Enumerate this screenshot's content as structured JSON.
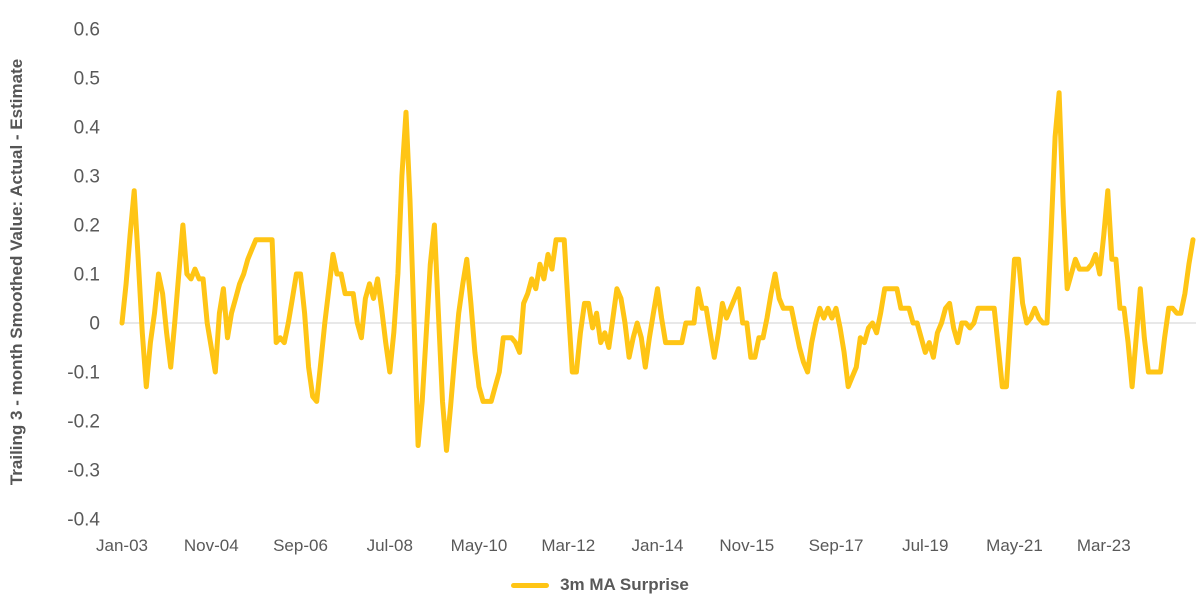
{
  "colors": {
    "line": "#FFC515",
    "zero_line": "#D9D9D9",
    "tick_text": "#595959",
    "axis_title_text": "#555555",
    "background": "#FFFFFF"
  },
  "legend": {
    "label": "3m MA Surprise"
  },
  "chart_data": {
    "type": "line",
    "title": "",
    "xlabel": "",
    "ylabel": "Trailing 3 - month Smoothed Value: Actual  - Estimate",
    "x_start": "Jan-2003",
    "x_frequency": "monthly",
    "x_tick_labels": [
      "Jan-03",
      "Nov-04",
      "Sep-06",
      "Jul-08",
      "May-10",
      "Mar-12",
      "Jan-14",
      "Nov-15",
      "Sep-17",
      "Jul-19",
      "May-21",
      "Mar-23"
    ],
    "x_tick_month_indices": [
      0,
      22,
      44,
      66,
      88,
      110,
      132,
      154,
      176,
      198,
      220,
      242
    ],
    "y_tick_labels": [
      "0.6",
      "0.5",
      "0.4",
      "0.3",
      "0.2",
      "0.1",
      "0",
      "-0.1",
      "-0.2",
      "-0.3",
      "-0.4"
    ],
    "y_tick_values": [
      0.6,
      0.5,
      0.4,
      0.3,
      0.2,
      0.1,
      0,
      -0.1,
      -0.2,
      -0.3,
      -0.4
    ],
    "ylim": [
      -0.4,
      0.6
    ],
    "grid": "zero-line-only",
    "legend_position": "bottom",
    "series": [
      {
        "name": "3m MA Surprise",
        "values": [
          0.0,
          0.08,
          0.18,
          0.27,
          0.13,
          -0.02,
          -0.13,
          -0.04,
          0.02,
          0.1,
          0.06,
          -0.02,
          -0.09,
          0.0,
          0.1,
          0.2,
          0.1,
          0.09,
          0.11,
          0.09,
          0.09,
          0.0,
          -0.05,
          -0.1,
          0.02,
          0.07,
          -0.03,
          0.02,
          0.05,
          0.08,
          0.1,
          0.13,
          0.15,
          0.17,
          0.17,
          0.17,
          0.17,
          0.17,
          -0.04,
          -0.03,
          -0.04,
          0.0,
          0.05,
          0.1,
          0.1,
          0.02,
          -0.09,
          -0.15,
          -0.16,
          -0.08,
          0.0,
          0.07,
          0.14,
          0.1,
          0.1,
          0.06,
          0.06,
          0.06,
          0.0,
          -0.03,
          0.05,
          0.08,
          0.05,
          0.09,
          0.03,
          -0.04,
          -0.1,
          -0.02,
          0.1,
          0.3,
          0.43,
          0.25,
          0.0,
          -0.25,
          -0.16,
          -0.02,
          0.12,
          0.2,
          0.02,
          -0.16,
          -0.26,
          -0.17,
          -0.07,
          0.02,
          0.08,
          0.13,
          0.04,
          -0.06,
          -0.13,
          -0.16,
          -0.16,
          -0.16,
          -0.13,
          -0.1,
          -0.03,
          -0.03,
          -0.03,
          -0.04,
          -0.06,
          0.04,
          0.06,
          0.09,
          0.07,
          0.12,
          0.09,
          0.14,
          0.11,
          0.17,
          0.17,
          0.17,
          0.03,
          -0.1,
          -0.1,
          -0.02,
          0.04,
          0.04,
          -0.01,
          0.02,
          -0.04,
          -0.02,
          -0.05,
          0.01,
          0.07,
          0.05,
          0.0,
          -0.07,
          -0.03,
          0.0,
          -0.03,
          -0.09,
          -0.03,
          0.02,
          0.07,
          0.01,
          -0.04,
          -0.04,
          -0.04,
          -0.04,
          -0.04,
          0.0,
          0.0,
          0.0,
          0.07,
          0.03,
          0.03,
          -0.02,
          -0.07,
          -0.02,
          0.04,
          0.01,
          0.03,
          0.05,
          0.07,
          0.0,
          0.0,
          -0.07,
          -0.07,
          -0.03,
          -0.03,
          0.01,
          0.06,
          0.1,
          0.05,
          0.03,
          0.03,
          0.03,
          -0.01,
          -0.05,
          -0.08,
          -0.1,
          -0.04,
          0.0,
          0.03,
          0.01,
          0.03,
          0.01,
          0.03,
          -0.01,
          -0.06,
          -0.13,
          -0.11,
          -0.09,
          -0.03,
          -0.04,
          -0.01,
          0.0,
          -0.02,
          0.02,
          0.07,
          0.07,
          0.07,
          0.07,
          0.03,
          0.03,
          0.03,
          0.0,
          0.0,
          -0.03,
          -0.06,
          -0.04,
          -0.07,
          -0.02,
          0.0,
          0.03,
          0.04,
          -0.01,
          -0.04,
          0.0,
          0.0,
          -0.01,
          0.0,
          0.03,
          0.03,
          0.03,
          0.03,
          0.03,
          -0.05,
          -0.13,
          -0.13,
          0.0,
          0.13,
          0.13,
          0.04,
          0.0,
          0.01,
          0.03,
          0.01,
          0.0,
          0.0,
          0.18,
          0.38,
          0.47,
          0.24,
          0.07,
          0.1,
          0.13,
          0.11,
          0.11,
          0.11,
          0.12,
          0.14,
          0.1,
          0.18,
          0.27,
          0.13,
          0.13,
          0.03,
          0.03,
          -0.04,
          -0.13,
          -0.03,
          0.07,
          -0.03,
          -0.1,
          -0.1,
          -0.1,
          -0.1,
          -0.03,
          0.03,
          0.03,
          0.02,
          0.02,
          0.06,
          0.12,
          0.17
        ]
      }
    ]
  }
}
